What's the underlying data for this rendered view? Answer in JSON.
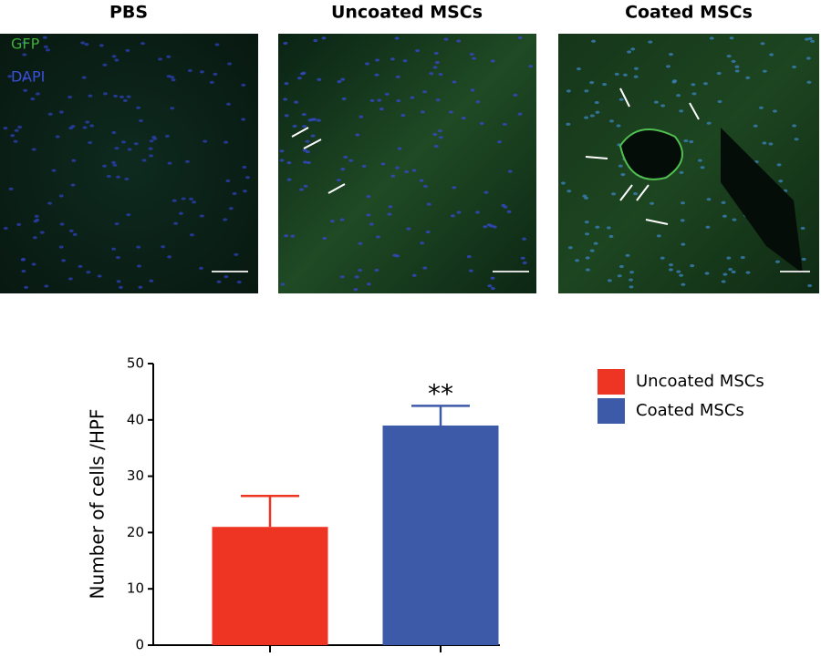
{
  "panels": [
    {
      "title": "PBS"
    },
    {
      "title": "Uncoated MSCs"
    },
    {
      "title": "Coated MSCs"
    }
  ],
  "stain_labels": [
    "GFP",
    "DAPI"
  ],
  "chart_data": {
    "type": "bar",
    "y_label": "Number of cells /HPF",
    "categories": [
      null,
      null
    ],
    "series": [
      {
        "name": "Uncoated MSCs",
        "color": "#ee3524",
        "values": [
          21,
          null
        ],
        "errors": [
          5.5,
          null
        ]
      },
      {
        "name": "Coated MSCs",
        "color": "#3d5aa8",
        "values": [
          null,
          39
        ],
        "errors": [
          null,
          3.5
        ]
      }
    ],
    "annotation": "**",
    "ylim": [
      0,
      50
    ],
    "yticks": [
      0,
      10,
      20,
      30,
      40,
      50
    ],
    "legend": "right"
  }
}
